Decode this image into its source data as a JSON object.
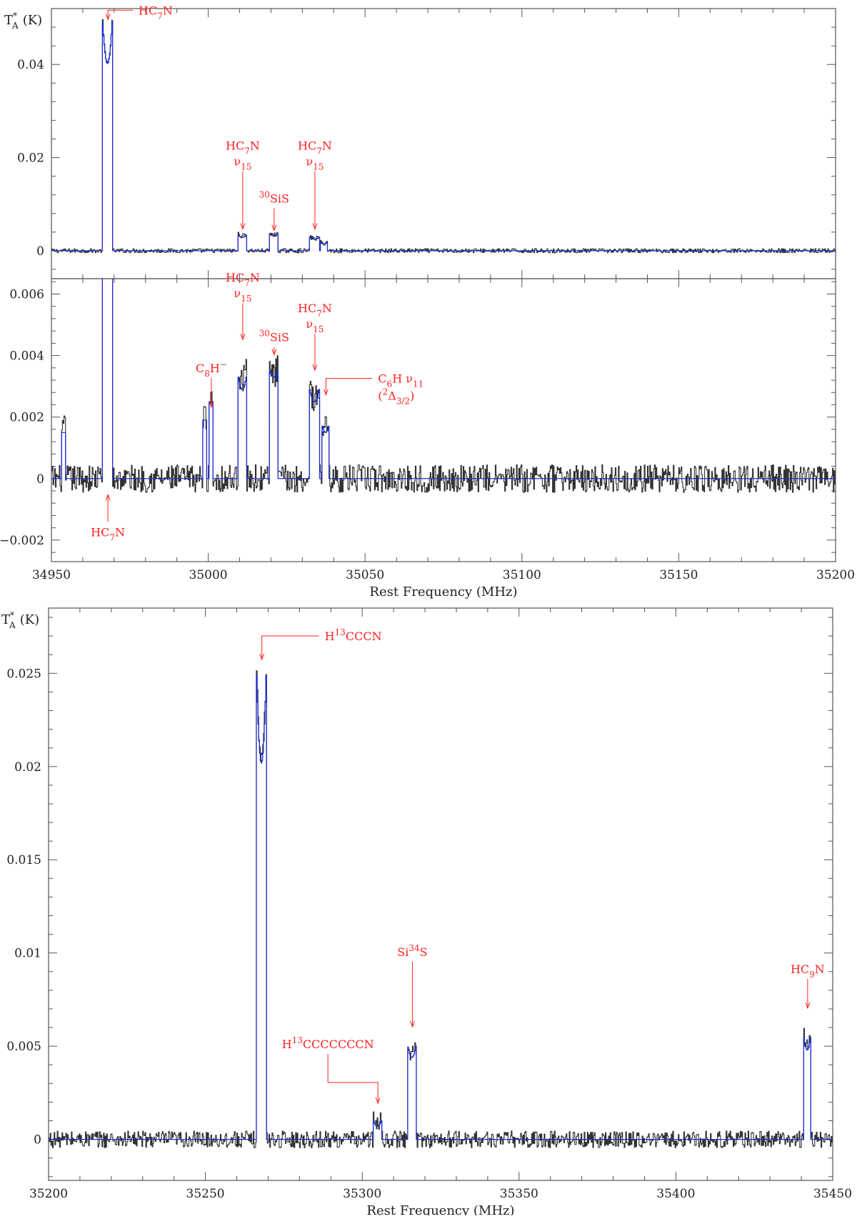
{
  "colors": {
    "observed": "#333333",
    "model": "#1f2fd0",
    "annotation": "#ff2020",
    "axis": "#555555"
  },
  "chart_data": [
    {
      "id": "panel1",
      "type": "line",
      "xlim": [
        34950,
        35200
      ],
      "ylim": [
        -0.006,
        0.052
      ],
      "y_ticks": [
        0,
        0.02,
        0.04
      ],
      "y_tick_labels": [
        "0",
        "0.02",
        "0.04"
      ],
      "ylabel": "T",
      "ylabel_sub": "A",
      "ylabel_sup": "*",
      "ylabel_unit": "(K)",
      "series": [
        {
          "role": "observed",
          "peaks": [
            {
              "x": 34968,
              "width": 3.0,
              "amp": 0.0492,
              "dip": 0.009
            },
            {
              "x": 35011,
              "width": 2.5,
              "amp": 0.0036,
              "dip": 0.0004
            },
            {
              "x": 35021,
              "width": 2.5,
              "amp": 0.0036,
              "dip": 0.0002
            },
            {
              "x": 35034,
              "width": 3.0,
              "amp": 0.003,
              "dip": 0.0004
            },
            {
              "x": 35037,
              "width": 2.0,
              "amp": 0.0018,
              "dip": 0.0002
            }
          ],
          "noise": 0.00045
        },
        {
          "role": "model",
          "peaks": [
            {
              "x": 34968,
              "width": 3.0,
              "amp": 0.0492,
              "dip": 0.009
            },
            {
              "x": 35011,
              "width": 2.5,
              "amp": 0.0033,
              "dip": 0.0004
            },
            {
              "x": 35021,
              "width": 2.5,
              "amp": 0.0035,
              "dip": 0.0002
            },
            {
              "x": 35034,
              "width": 3.0,
              "amp": 0.0029,
              "dip": 0.0004
            },
            {
              "x": 35037,
              "width": 2.0,
              "amp": 0.0017,
              "dip": 0.0002
            }
          ]
        }
      ],
      "annotations": [
        {
          "label": "HC7N",
          "parts": [
            [
              "HC",
              ""
            ],
            [
              "7",
              "sub"
            ],
            [
              "N",
              ""
            ]
          ],
          "at_x": 34968,
          "at_y": 0.0495,
          "side": "right"
        },
        {
          "label": "HC7N ν15",
          "parts": [
            [
              "HC",
              ""
            ],
            [
              "7",
              "sub"
            ],
            [
              "N",
              ""
            ]
          ],
          "parts2": [
            [
              "ν",
              ""
            ],
            [
              "15",
              "sub"
            ]
          ],
          "at_x": 35011,
          "at_y": 0.0045
        },
        {
          "label": "30SiS",
          "parts": [
            [
              "30",
              "sup"
            ],
            [
              "SiS",
              ""
            ]
          ],
          "at_x": 35021,
          "at_y": 0.0042
        },
        {
          "label": "HC7N ν15",
          "parts": [
            [
              "HC",
              ""
            ],
            [
              "7",
              "sub"
            ],
            [
              "N",
              ""
            ]
          ],
          "parts2": [
            [
              "ν",
              ""
            ],
            [
              "15",
              "sub"
            ]
          ],
          "at_x": 35034,
          "at_y": 0.0045
        }
      ]
    },
    {
      "id": "panel2",
      "type": "line",
      "xlim": [
        34950,
        35200
      ],
      "ylim": [
        -0.0027,
        0.0065
      ],
      "y_ticks": [
        -0.002,
        0,
        0.002,
        0.004,
        0.006
      ],
      "y_tick_labels": [
        "−0.002",
        "0",
        "0.002",
        "0.004",
        "0.006"
      ],
      "x_ticks": [
        34950,
        35000,
        35050,
        35100,
        35150,
        35200
      ],
      "x_tick_labels": [
        "34950",
        "35000",
        "35050",
        "35100",
        "35150",
        "35200"
      ],
      "xlabel": "Rest Frequency (MHz)",
      "series": [
        {
          "role": "observed",
          "peaks": [
            {
              "x": 34954,
              "width": 1.2,
              "amp": 0.0016,
              "dip": 0.0
            },
            {
              "x": 34968,
              "width": 3.0,
              "amp": 0.0492,
              "dip": 0.009
            },
            {
              "x": 34999,
              "width": 1.2,
              "amp": 0.002,
              "dip": 0.0
            },
            {
              "x": 35001,
              "width": 1.0,
              "amp": 0.0026,
              "dip": 0.0
            },
            {
              "x": 35011,
              "width": 2.5,
              "amp": 0.0036,
              "dip": 0.0004
            },
            {
              "x": 35021,
              "width": 2.5,
              "amp": 0.0036,
              "dip": 0.0002
            },
            {
              "x": 35034,
              "width": 3.0,
              "amp": 0.003,
              "dip": 0.0004
            },
            {
              "x": 35037.5,
              "width": 2.0,
              "amp": 0.0018,
              "dip": 0.0002
            }
          ],
          "noise": 0.00045
        },
        {
          "role": "model",
          "peaks": [
            {
              "x": 34954,
              "width": 1.2,
              "amp": 0.0015,
              "dip": 0.0
            },
            {
              "x": 34968,
              "width": 3.0,
              "amp": 0.0492,
              "dip": 0.009
            },
            {
              "x": 34999,
              "width": 1.2,
              "amp": 0.0019,
              "dip": 0.0
            },
            {
              "x": 35001,
              "width": 1.0,
              "amp": 0.0025,
              "dip": 0.0
            },
            {
              "x": 35011,
              "width": 2.5,
              "amp": 0.0033,
              "dip": 0.0004
            },
            {
              "x": 35021,
              "width": 2.5,
              "amp": 0.0035,
              "dip": 0.0002
            },
            {
              "x": 35034,
              "width": 3.0,
              "amp": 0.0029,
              "dip": 0.0004
            },
            {
              "x": 35037.5,
              "width": 2.0,
              "amp": 0.0017,
              "dip": 0.0002
            }
          ]
        }
      ],
      "annotations": [
        {
          "label": "HC7N ν15",
          "parts": [
            [
              "HC",
              ""
            ],
            [
              "7",
              "sub"
            ],
            [
              "N",
              ""
            ]
          ],
          "parts2": [
            [
              "ν",
              ""
            ],
            [
              "15",
              "sub"
            ]
          ],
          "at_x": 35011,
          "at_y": 0.0045
        },
        {
          "label": "30SiS",
          "parts": [
            [
              "30",
              "sup"
            ],
            [
              "SiS",
              ""
            ]
          ],
          "at_x": 35021,
          "at_y": 0.004
        },
        {
          "label": "HC7N ν15",
          "parts": [
            [
              "HC",
              ""
            ],
            [
              "7",
              "sub"
            ],
            [
              "N",
              ""
            ]
          ],
          "parts2": [
            [
              "ν",
              ""
            ],
            [
              "15",
              "sub"
            ]
          ],
          "at_x": 35034,
          "at_y": 0.0035
        },
        {
          "label": "C8H−",
          "parts": [
            [
              "C",
              ""
            ],
            [
              "8",
              "sub"
            ],
            [
              "H",
              ""
            ],
            [
              "−",
              "sup"
            ]
          ],
          "at_x": 35001,
          "at_y": 0.0023
        },
        {
          "label": "C6H ν11 (2Δ3/2)",
          "parts": [
            [
              "C",
              ""
            ],
            [
              "6",
              "sub"
            ],
            [
              "H  ν",
              ""
            ],
            [
              "11",
              "sub"
            ]
          ],
          "parts2": [
            [
              "(",
              ""
            ],
            [
              "2",
              "sup"
            ],
            [
              "Δ",
              ""
            ],
            [
              "3/2",
              "sub"
            ],
            [
              ")",
              ""
            ]
          ],
          "at_x": 35037.5,
          "at_y": 0.0027,
          "side": "right"
        },
        {
          "label": "HC7N",
          "parts": [
            [
              "HC",
              ""
            ],
            [
              "7",
              "sub"
            ],
            [
              "N",
              ""
            ]
          ],
          "at_x": 34968,
          "at_y": -0.0005,
          "side": "below"
        }
      ]
    },
    {
      "id": "panel3",
      "type": "line",
      "xlim": [
        35200,
        35450
      ],
      "ylim": [
        -0.0022,
        0.0285
      ],
      "y_ticks": [
        0,
        0.005,
        0.01,
        0.015,
        0.02,
        0.025
      ],
      "y_tick_labels": [
        "0",
        "0.005",
        "0.01",
        "0.015",
        "0.02",
        "0.025"
      ],
      "x_ticks": [
        35200,
        35250,
        35300,
        35350,
        35400,
        35450
      ],
      "x_tick_labels": [
        "35200",
        "35250",
        "35300",
        "35350",
        "35400",
        "35450"
      ],
      "xlabel": "Rest Frequency (MHz)",
      "ylabel": "T",
      "ylabel_sub": "A",
      "ylabel_sup": "*",
      "ylabel_unit": "(K)",
      "series": [
        {
          "role": "observed",
          "peaks": [
            {
              "x": 35268,
              "width": 3.4,
              "amp": 0.0265,
              "dip": 0.006
            },
            {
              "x": 35305,
              "width": 2.5,
              "amp": 0.0011,
              "dip": 0.0003
            },
            {
              "x": 35316,
              "width": 2.6,
              "amp": 0.0052,
              "dip": 0.0006
            },
            {
              "x": 35442,
              "width": 2.4,
              "amp": 0.006,
              "dip": 0.001
            }
          ],
          "noise": 0.00045
        },
        {
          "role": "model",
          "peaks": [
            {
              "x": 35268,
              "width": 3.4,
              "amp": 0.0262,
              "dip": 0.006
            },
            {
              "x": 35305,
              "width": 2.5,
              "amp": 0.001,
              "dip": 0.0003
            },
            {
              "x": 35316,
              "width": 2.6,
              "amp": 0.005,
              "dip": 0.0006
            },
            {
              "x": 35442,
              "width": 2.4,
              "amp": 0.0058,
              "dip": 0.001
            }
          ]
        }
      ],
      "annotations": [
        {
          "label": "H13CCCN",
          "parts": [
            [
              "H",
              ""
            ],
            [
              "13",
              "sup"
            ],
            [
              "CCCN",
              ""
            ]
          ],
          "at_x": 35268,
          "at_y": 0.0257,
          "side": "right"
        },
        {
          "label": "Si34S",
          "parts": [
            [
              "Si",
              ""
            ],
            [
              "34",
              "sup"
            ],
            [
              "S",
              ""
            ]
          ],
          "at_x": 35316,
          "at_y": 0.006
        },
        {
          "label": "HC9N",
          "parts": [
            [
              "HC",
              ""
            ],
            [
              "9",
              "sub"
            ],
            [
              "N",
              ""
            ]
          ],
          "at_x": 35442,
          "at_y": 0.007
        },
        {
          "label": "H13CCCCCCCN",
          "parts": [
            [
              "H",
              ""
            ],
            [
              "13",
              "sup"
            ],
            [
              "CCCCCCCN",
              ""
            ]
          ],
          "at_x": 35305,
          "at_y": 0.0019,
          "side": "left"
        }
      ]
    }
  ]
}
